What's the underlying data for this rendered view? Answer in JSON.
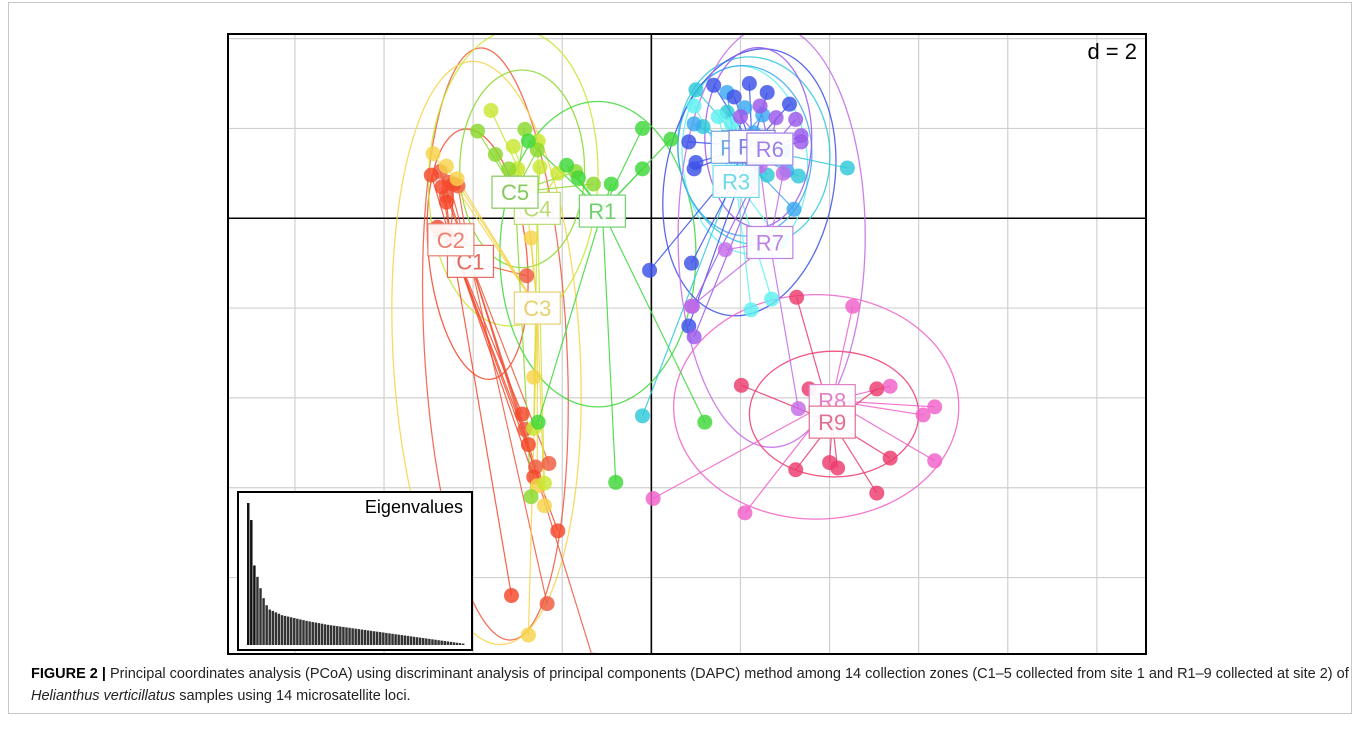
{
  "chart_data": {
    "type": "scatter",
    "title": "",
    "xlabel": "",
    "ylabel": "",
    "xlim": [
      -4.74,
      5.54
    ],
    "ylim": [
      -4.84,
      2.04
    ],
    "grid": true,
    "scale_label": "d = 2",
    "groups": [
      {
        "name": "C1",
        "color": "#ee5a3e",
        "label_color": "#e06a60",
        "centroid": [
          -2.03,
          -0.48
        ]
      },
      {
        "name": "C2",
        "color": "#f4472a",
        "label_color": "#ec8070",
        "centroid": [
          -2.25,
          -0.24
        ]
      },
      {
        "name": "C3",
        "color": "#f6d34a",
        "label_color": "#e8d070",
        "centroid": [
          -1.28,
          -1.0
        ]
      },
      {
        "name": "C4",
        "color": "#c8e632",
        "label_color": "#b8dc70",
        "centroid": [
          -1.28,
          0.11
        ]
      },
      {
        "name": "C5",
        "color": "#8ad82c",
        "label_color": "#88c860",
        "centroid": [
          -1.53,
          0.29
        ]
      },
      {
        "name": "R1",
        "color": "#3ed838",
        "label_color": "#70d070",
        "centroid": [
          -0.55,
          0.08
        ]
      },
      {
        "name": "R2",
        "color": "#2ec8d8",
        "label_color": "#60c0e0",
        "centroid": [
          1.05,
          0.8
        ]
      },
      {
        "name": "R3",
        "color": "#5ef0f0",
        "label_color": "#70d8e8",
        "centroid": [
          0.95,
          0.41
        ]
      },
      {
        "name": "R4",
        "color": "#3aa8f0",
        "label_color": "#70a8e8",
        "centroid": [
          0.93,
          0.79
        ]
      },
      {
        "name": "R5",
        "color": "#3c50e8",
        "label_color": "#8080e0",
        "centroid": [
          1.13,
          0.8
        ]
      },
      {
        "name": "R6",
        "color": "#9a58ea",
        "label_color": "#a080e8",
        "centroid": [
          1.33,
          0.77
        ]
      },
      {
        "name": "R7",
        "color": "#c46ae8",
        "label_color": "#c080e0",
        "centroid": [
          1.33,
          -0.27
        ]
      },
      {
        "name": "R8",
        "color": "#f060c8",
        "label_color": "#e080c8",
        "centroid": [
          2.03,
          -2.03
        ]
      },
      {
        "name": "R9",
        "color": "#ec3a6c",
        "label_color": "#e07090",
        "centroid": [
          2.03,
          -2.27
        ]
      }
    ],
    "points": [
      {
        "group": "C1",
        "xy": [
          [
            -2.37,
            0.52
          ],
          [
            -2.27,
            0.4
          ],
          [
            -2.17,
            0.36
          ],
          [
            -2.3,
            0.25
          ],
          [
            -2.37,
            -0.15
          ],
          [
            -1.4,
            -0.64
          ],
          [
            -1.42,
            -2.35
          ],
          [
            -1.3,
            -2.77
          ],
          [
            -1.15,
            -2.73
          ],
          [
            -1.17,
            -4.29
          ],
          [
            -0.65,
            -4.92
          ]
        ]
      },
      {
        "group": "C2",
        "xy": [
          [
            -2.47,
            0.48
          ],
          [
            -2.35,
            0.35
          ],
          [
            -2.22,
            0.38
          ],
          [
            -2.3,
            0.18
          ],
          [
            -2.4,
            -0.1
          ],
          [
            -2.25,
            -0.22
          ],
          [
            -1.45,
            -2.18
          ],
          [
            -1.38,
            -2.52
          ],
          [
            -1.32,
            -2.88
          ],
          [
            -1.05,
            -3.48
          ],
          [
            -1.57,
            -4.2
          ]
        ]
      },
      {
        "group": "C3",
        "xy": [
          [
            -2.45,
            0.72
          ],
          [
            -2.3,
            0.58
          ],
          [
            -2.18,
            0.44
          ],
          [
            -1.4,
            0.18
          ],
          [
            -1.35,
            -0.22
          ],
          [
            -1.32,
            -1.77
          ],
          [
            -1.28,
            -2.98
          ],
          [
            -1.38,
            -4.64
          ],
          [
            -1.2,
            -3.2
          ]
        ]
      },
      {
        "group": "C4",
        "xy": [
          [
            -1.8,
            1.2
          ],
          [
            -1.55,
            0.8
          ],
          [
            -1.5,
            0.55
          ],
          [
            -1.27,
            0.86
          ],
          [
            -1.25,
            0.57
          ],
          [
            -1.35,
            0.35
          ],
          [
            -1.05,
            0.5
          ],
          [
            -1.32,
            -2.34
          ],
          [
            -1.2,
            -2.95
          ]
        ]
      },
      {
        "group": "C5",
        "xy": [
          [
            -1.95,
            0.97
          ],
          [
            -1.75,
            0.71
          ],
          [
            -1.6,
            0.55
          ],
          [
            -1.42,
            0.99
          ],
          [
            -1.28,
            0.76
          ],
          [
            -0.85,
            0.52
          ],
          [
            -0.65,
            0.38
          ],
          [
            -1.35,
            -3.1
          ]
        ]
      },
      {
        "group": "R1",
        "xy": [
          [
            -1.38,
            0.86
          ],
          [
            -0.95,
            0.59
          ],
          [
            -0.82,
            0.45
          ],
          [
            -0.45,
            0.38
          ],
          [
            -0.1,
            1.0
          ],
          [
            0.22,
            0.88
          ],
          [
            -0.1,
            0.55
          ],
          [
            -0.4,
            -2.94
          ],
          [
            -1.27,
            -2.27
          ],
          [
            0.6,
            -2.27
          ]
        ]
      },
      {
        "group": "R2",
        "xy": [
          [
            0.5,
            1.43
          ],
          [
            0.58,
            1.02
          ],
          [
            0.85,
            1.18
          ],
          [
            1.3,
            0.48
          ],
          [
            1.65,
            0.47
          ],
          [
            2.2,
            0.56
          ],
          [
            -0.1,
            -2.2
          ]
        ]
      },
      {
        "group": "R3",
        "xy": [
          [
            0.48,
            1.25
          ],
          [
            0.75,
            1.13
          ],
          [
            0.9,
            1.05
          ],
          [
            1.08,
            0.88
          ],
          [
            1.13,
            0.46
          ],
          [
            1.45,
            -0.26
          ],
          [
            1.12,
            -1.02
          ],
          [
            1.35,
            -0.9
          ]
        ]
      },
      {
        "group": "R4",
        "xy": [
          [
            0.48,
            1.05
          ],
          [
            0.85,
            1.4
          ],
          [
            1.05,
            1.23
          ],
          [
            1.15,
            0.95
          ],
          [
            1.25,
            1.15
          ],
          [
            1.48,
            0.75
          ],
          [
            1.52,
            0.53
          ],
          [
            1.6,
            0.1
          ]
        ]
      },
      {
        "group": "R5",
        "xy": [
          [
            0.7,
            1.48
          ],
          [
            0.93,
            1.35
          ],
          [
            1.1,
            1.5
          ],
          [
            1.3,
            1.4
          ],
          [
            1.55,
            1.27
          ],
          [
            0.5,
            0.62
          ],
          [
            0.42,
            0.85
          ],
          [
            0.48,
            0.55
          ],
          [
            -0.02,
            -0.58
          ],
          [
            0.42,
            -1.2
          ],
          [
            0.45,
            -0.5
          ]
        ]
      },
      {
        "group": "R6",
        "xy": [
          [
            1.0,
            1.13
          ],
          [
            1.22,
            1.25
          ],
          [
            1.4,
            1.12
          ],
          [
            1.62,
            1.1
          ],
          [
            1.68,
            0.92
          ],
          [
            1.68,
            0.85
          ],
          [
            0.46,
            -0.98
          ],
          [
            0.48,
            -1.32
          ]
        ]
      },
      {
        "group": "R7",
        "xy": [
          [
            1.22,
            0.58
          ],
          [
            1.48,
            0.5
          ],
          [
            0.83,
            -0.35
          ],
          [
            0.45,
            -0.98
          ],
          [
            1.65,
            -2.12
          ]
        ]
      },
      {
        "group": "R8",
        "xy": [
          [
            2.26,
            -0.98
          ],
          [
            2.68,
            -1.87
          ],
          [
            3.18,
            -2.1
          ],
          [
            3.05,
            -2.19
          ],
          [
            3.18,
            -2.7
          ],
          [
            0.02,
            -3.12
          ],
          [
            1.05,
            -3.28
          ]
        ]
      },
      {
        "group": "R9",
        "xy": [
          [
            1.63,
            -0.88
          ],
          [
            1.77,
            -1.9
          ],
          [
            1.01,
            -1.86
          ],
          [
            2.53,
            -1.9
          ],
          [
            2.68,
            -2.67
          ],
          [
            2.0,
            -2.72
          ],
          [
            2.09,
            -2.78
          ],
          [
            1.62,
            -2.8
          ],
          [
            2.53,
            -3.06
          ]
        ]
      }
    ],
    "ellipses": [
      {
        "group": "C1",
        "cx": -1.75,
        "cy": -1.4,
        "rx": 0.8,
        "ry": 3.3,
        "rot": -3
      },
      {
        "group": "C2",
        "cx": -1.95,
        "cy": -0.4,
        "rx": 0.55,
        "ry": 1.4,
        "rot": -6
      },
      {
        "group": "C3",
        "cx": -1.85,
        "cy": -1.5,
        "rx": 1.05,
        "ry": 3.25,
        "rot": -3
      },
      {
        "group": "C4",
        "cx": -1.55,
        "cy": 0.45,
        "rx": 0.95,
        "ry": 1.65,
        "rot": 2
      },
      {
        "group": "C5",
        "cx": -1.45,
        "cy": 0.55,
        "rx": 0.7,
        "ry": 1.1,
        "rot": 0
      },
      {
        "group": "R1",
        "cx": -0.6,
        "cy": -0.4,
        "rx": 1.1,
        "ry": 1.7,
        "rot": 0
      },
      {
        "group": "R2",
        "cx": 1.15,
        "cy": 0.75,
        "rx": 0.85,
        "ry": 1.05,
        "rot": -8
      },
      {
        "group": "R3",
        "cx": 1.05,
        "cy": 0.65,
        "rx": 0.7,
        "ry": 1.05,
        "rot": -6
      },
      {
        "group": "R4",
        "cx": 1.05,
        "cy": 0.75,
        "rx": 0.75,
        "ry": 0.95,
        "rot": -4
      },
      {
        "group": "R5",
        "cx": 1.1,
        "cy": 0.4,
        "rx": 0.95,
        "ry": 1.5,
        "rot": 10
      },
      {
        "group": "R6",
        "cx": 1.2,
        "cy": 0.9,
        "rx": 0.6,
        "ry": 1.0,
        "rot": 0
      },
      {
        "group": "R7",
        "cx": 1.35,
        "cy": -0.2,
        "rx": 1.05,
        "ry": 2.35,
        "rot": 0
      },
      {
        "group": "R8",
        "cx": 1.85,
        "cy": -2.1,
        "rx": 1.6,
        "ry": 1.25,
        "rot": 0
      },
      {
        "group": "R9",
        "cx": 2.05,
        "cy": -2.18,
        "rx": 0.95,
        "ry": 0.7,
        "rot": 0
      }
    ],
    "eigenvalues_inset": {
      "title": "Eigenvalues",
      "values": [
        100,
        88,
        56,
        48,
        40,
        33,
        28,
        25,
        24,
        23,
        22,
        21,
        20.5,
        20,
        19.5,
        19,
        18.5,
        18,
        17.5,
        17,
        16.6,
        16.2,
        15.8,
        15.4,
        15,
        14.6,
        14.2,
        13.9,
        13.6,
        13.3,
        13,
        12.7,
        12.4,
        12.1,
        11.8,
        11.5,
        11.2,
        10.9,
        10.6,
        10.3,
        10,
        9.7,
        9.4,
        9.1,
        8.8,
        8.5,
        8.2,
        7.9,
        7.6,
        7.3,
        7,
        6.7,
        6.4,
        6.1,
        5.8,
        5.5,
        5.2,
        4.9,
        4.6,
        4.3,
        4,
        3.7,
        3.4,
        3.1,
        2.8,
        2.5,
        2.2,
        1.9,
        1.6,
        1.3,
        1
      ]
    }
  },
  "caption": {
    "label": "FIGURE 2 |",
    "text_1": " Principal coordinates analysis (PCoA) using discriminant analysis of principal components (DAPC) method among 14 collection zones (C1–5 collected from site 1 and R1–9 collected at site 2) of ",
    "species": "Helianthus verticillatus",
    "text_2": " samples using 14 microsatellite loci."
  }
}
